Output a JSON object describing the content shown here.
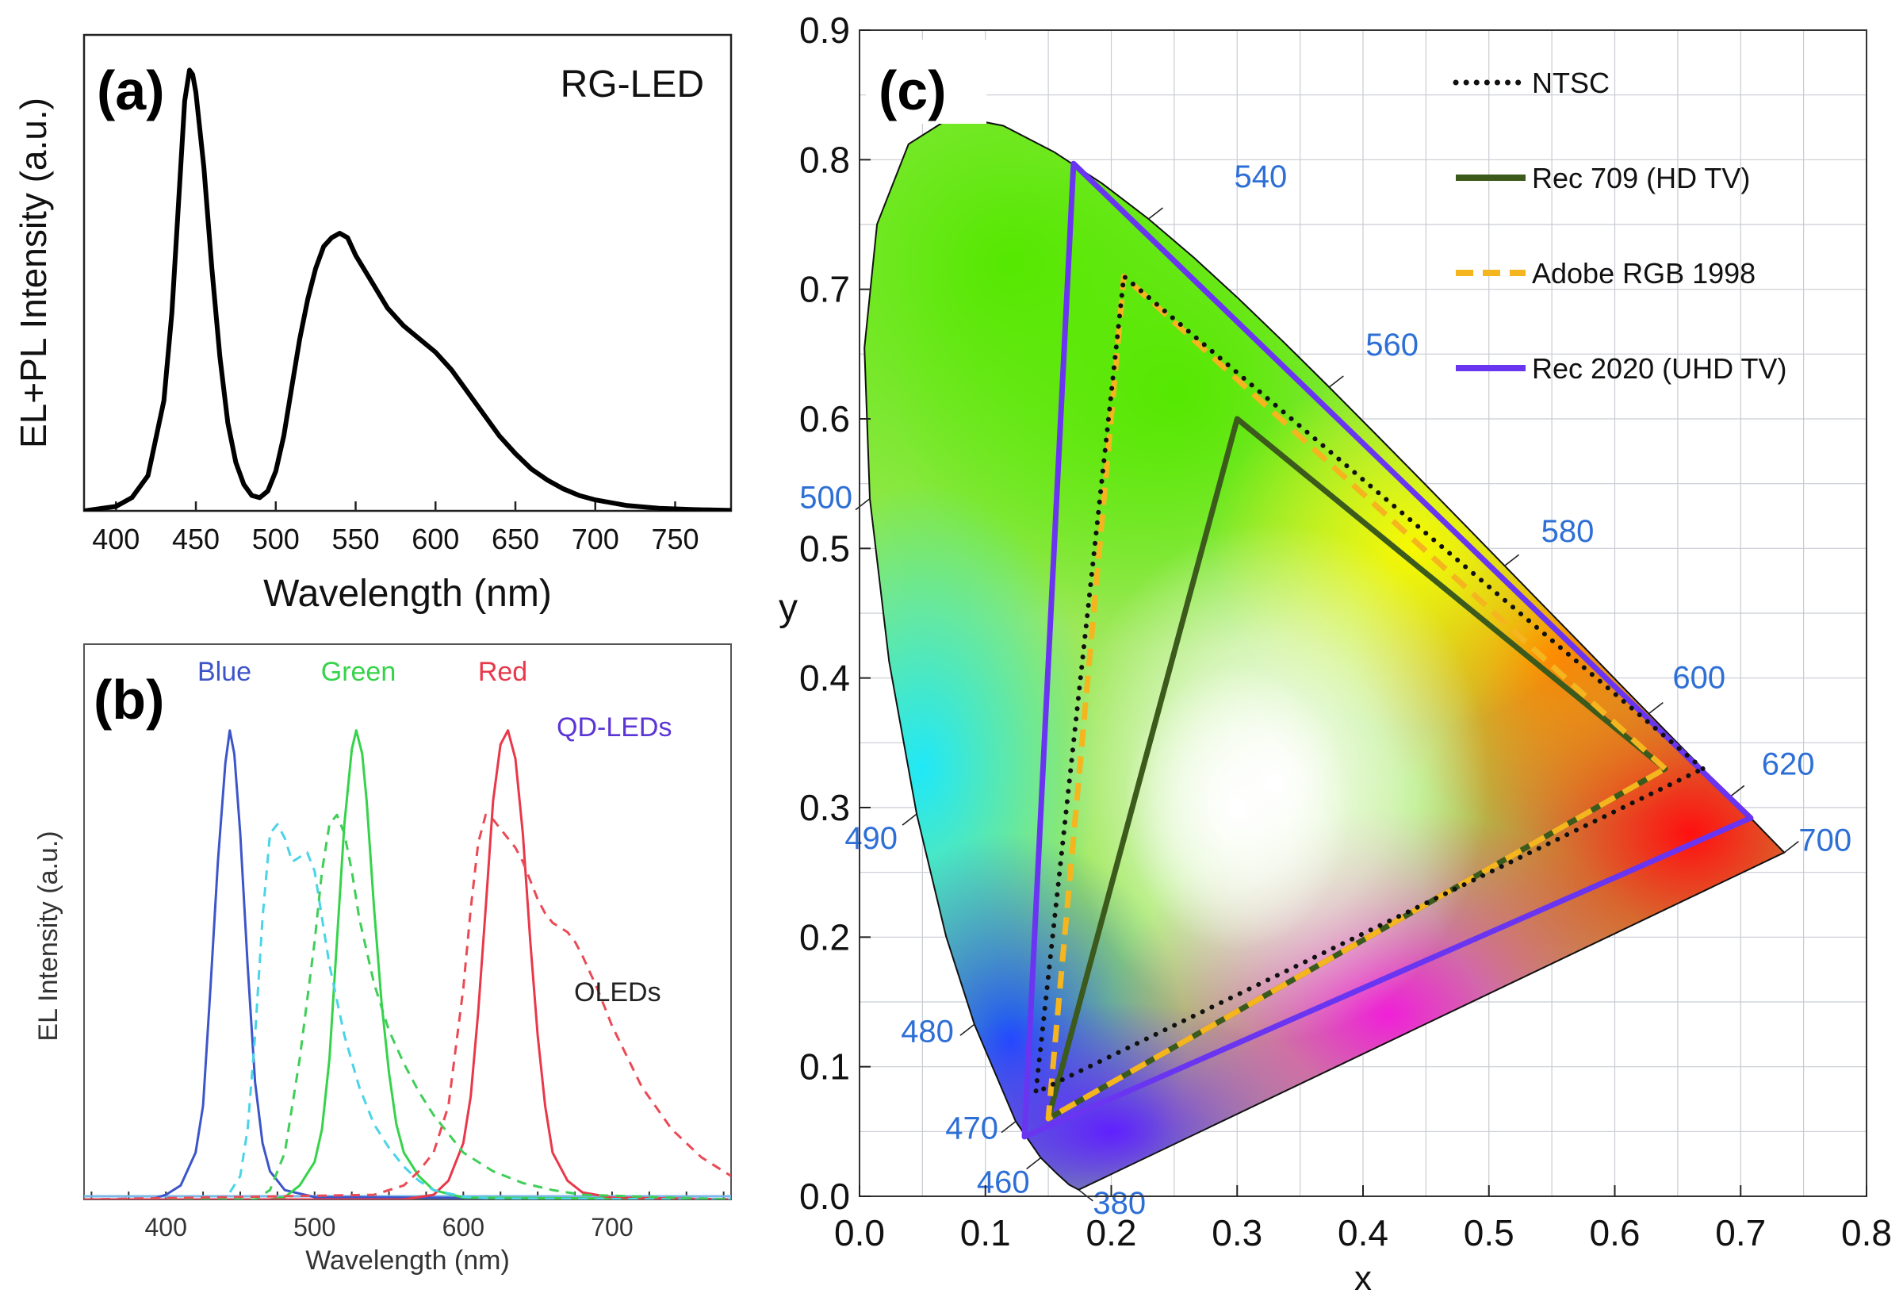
{
  "chart_data": [
    {
      "panel": "(a)",
      "type": "line",
      "annotation": "RG-LED",
      "xlabel": "Wavelength (nm)",
      "ylabel": "EL+PL Intensity (a.u.)",
      "xlim": [
        380,
        785
      ],
      "ylim": [
        0,
        1.08
      ],
      "xticks": [
        400,
        450,
        500,
        550,
        600,
        650,
        700,
        750
      ],
      "colors": {
        "line": "#000000"
      },
      "series": [
        {
          "x": [
            380,
            400,
            410,
            420,
            430,
            435,
            440,
            443,
            446,
            448,
            450,
            455,
            460,
            465,
            470,
            475,
            480,
            485,
            490,
            495,
            500,
            505,
            510,
            515,
            520,
            525,
            530,
            535,
            540,
            545,
            550,
            555,
            560,
            570,
            580,
            590,
            600,
            610,
            620,
            630,
            640,
            650,
            660,
            670,
            680,
            690,
            700,
            720,
            740,
            760,
            785
          ],
          "y": [
            0.0,
            0.01,
            0.03,
            0.08,
            0.25,
            0.45,
            0.75,
            0.93,
            1.0,
            0.99,
            0.95,
            0.78,
            0.55,
            0.35,
            0.2,
            0.11,
            0.06,
            0.035,
            0.03,
            0.045,
            0.09,
            0.17,
            0.28,
            0.39,
            0.48,
            0.55,
            0.6,
            0.62,
            0.63,
            0.62,
            0.58,
            0.55,
            0.52,
            0.46,
            0.42,
            0.39,
            0.36,
            0.32,
            0.27,
            0.22,
            0.17,
            0.13,
            0.095,
            0.07,
            0.05,
            0.035,
            0.025,
            0.012,
            0.006,
            0.003,
            0.001
          ]
        }
      ]
    },
    {
      "panel": "(b)",
      "type": "line",
      "annotations": {
        "qd": "QD-LEDs",
        "oled": "OLEDs"
      },
      "xlabel": "Wavelength (nm)",
      "ylabel": "EL Intensity (a.u.)",
      "xlim": [
        345,
        780
      ],
      "ylim": [
        0,
        1.03
      ],
      "xticks": [
        400,
        500,
        600,
        700
      ],
      "series": [
        {
          "name": "Blue",
          "style": "solid",
          "color": "#3d55c9",
          "x": [
            345,
            390,
            400,
            410,
            420,
            425,
            430,
            435,
            440,
            443,
            446,
            450,
            455,
            460,
            465,
            470,
            480,
            500,
            780
          ],
          "y": [
            0.0,
            0.0,
            0.01,
            0.03,
            0.1,
            0.2,
            0.45,
            0.72,
            0.93,
            1.0,
            0.95,
            0.78,
            0.5,
            0.25,
            0.12,
            0.06,
            0.02,
            0.005,
            0.0
          ]
        },
        {
          "name": "Green",
          "style": "solid",
          "color": "#35d34a",
          "x": [
            345,
            470,
            480,
            490,
            500,
            505,
            510,
            515,
            520,
            525,
            528,
            532,
            535,
            540,
            545,
            550,
            555,
            560,
            570,
            580,
            600,
            780
          ],
          "y": [
            0.0,
            0.0,
            0.005,
            0.03,
            0.08,
            0.15,
            0.3,
            0.55,
            0.8,
            0.96,
            1.0,
            0.95,
            0.85,
            0.62,
            0.42,
            0.27,
            0.16,
            0.1,
            0.05,
            0.02,
            0.004,
            0.0
          ]
        },
        {
          "name": "Red",
          "style": "solid",
          "color": "#e8384a",
          "x": [
            345,
            560,
            580,
            590,
            600,
            605,
            610,
            615,
            620,
            625,
            630,
            635,
            640,
            645,
            650,
            655,
            660,
            670,
            680,
            700,
            780
          ],
          "y": [
            0.0,
            0.0,
            0.01,
            0.04,
            0.12,
            0.22,
            0.4,
            0.62,
            0.85,
            0.97,
            1.0,
            0.94,
            0.78,
            0.55,
            0.35,
            0.2,
            0.1,
            0.04,
            0.015,
            0.004,
            0.0
          ]
        },
        {
          "style": "dashed",
          "color": "#4ad4e6",
          "x": [
            345,
            440,
            450,
            455,
            460,
            465,
            470,
            475,
            480,
            485,
            490,
            495,
            500,
            505,
            510,
            520,
            530,
            540,
            550,
            560,
            570,
            580,
            600,
            620,
            780
          ],
          "y": [
            0.0,
            0.0,
            0.05,
            0.15,
            0.35,
            0.6,
            0.78,
            0.8,
            0.77,
            0.72,
            0.73,
            0.74,
            0.7,
            0.6,
            0.5,
            0.35,
            0.24,
            0.16,
            0.11,
            0.07,
            0.04,
            0.02,
            0.006,
            0.002,
            0.0
          ]
        },
        {
          "style": "dashed",
          "color": "#3fce57",
          "x": [
            345,
            460,
            470,
            480,
            490,
            500,
            505,
            510,
            515,
            520,
            525,
            530,
            540,
            550,
            560,
            570,
            580,
            590,
            600,
            620,
            640,
            660,
            680,
            780
          ],
          "y": [
            0.0,
            0.0,
            0.02,
            0.1,
            0.3,
            0.55,
            0.7,
            0.8,
            0.82,
            0.78,
            0.7,
            0.6,
            0.46,
            0.36,
            0.29,
            0.23,
            0.18,
            0.14,
            0.1,
            0.06,
            0.035,
            0.02,
            0.01,
            0.0
          ]
        },
        {
          "style": "dashed",
          "color": "#ea4a55",
          "x": [
            345,
            540,
            560,
            570,
            580,
            590,
            600,
            605,
            610,
            615,
            620,
            625,
            630,
            635,
            640,
            645,
            650,
            655,
            660,
            665,
            670,
            675,
            680,
            690,
            700,
            720,
            740,
            760,
            780
          ],
          "y": [
            0.0,
            0.01,
            0.03,
            0.06,
            0.1,
            0.2,
            0.45,
            0.62,
            0.76,
            0.82,
            0.81,
            0.79,
            0.77,
            0.75,
            0.72,
            0.68,
            0.64,
            0.61,
            0.59,
            0.58,
            0.57,
            0.55,
            0.52,
            0.45,
            0.37,
            0.24,
            0.15,
            0.09,
            0.05
          ]
        }
      ]
    },
    {
      "panel": "(c)",
      "type": "scatter",
      "xlabel": "x",
      "ylabel": "y",
      "xlim": [
        0.0,
        0.8
      ],
      "ylim": [
        0.0,
        0.9
      ],
      "xticks": [
        0.0,
        0.1,
        0.2,
        0.3,
        0.4,
        0.5,
        0.6,
        0.7,
        0.8
      ],
      "yticks": [
        0.0,
        0.1,
        0.2,
        0.3,
        0.4,
        0.5,
        0.6,
        0.7,
        0.8,
        0.9
      ],
      "xtick_labels": [
        "0.0",
        "0.1",
        "0.2",
        "0.3",
        "0.4",
        "0.5",
        "0.6",
        "0.7",
        "0.8"
      ],
      "ytick_labels": [
        "0.0",
        "0.1",
        "0.2",
        "0.3",
        "0.4",
        "0.5",
        "0.6",
        "0.7",
        "0.8",
        "0.9"
      ],
      "grid": true,
      "legend_position": "top-right",
      "spectral_locus": {
        "x": [
          0.1741,
          0.1666,
          0.1566,
          0.144,
          0.1241,
          0.0913,
          0.0687,
          0.0454,
          0.0235,
          0.0082,
          0.0039,
          0.0139,
          0.0389,
          0.0743,
          0.1142,
          0.1547,
          0.1929,
          0.2296,
          0.2658,
          0.3016,
          0.3373,
          0.3731,
          0.4087,
          0.4441,
          0.4788,
          0.5125,
          0.5448,
          0.5752,
          0.6029,
          0.627,
          0.6482,
          0.6658,
          0.6801,
          0.6915,
          0.7006,
          0.7079,
          0.714,
          0.719,
          0.7347
        ],
        "y": [
          0.005,
          0.0089,
          0.0177,
          0.0297,
          0.0578,
          0.1327,
          0.2007,
          0.295,
          0.4127,
          0.5384,
          0.6548,
          0.7502,
          0.812,
          0.8338,
          0.8262,
          0.8059,
          0.7816,
          0.7543,
          0.7243,
          0.6923,
          0.6589,
          0.6245,
          0.5896,
          0.5547,
          0.5202,
          0.4866,
          0.4544,
          0.4242,
          0.3965,
          0.3725,
          0.3514,
          0.334,
          0.3197,
          0.3083,
          0.2993,
          0.292,
          0.2859,
          0.2809,
          0.2653
        ]
      },
      "wavelength_labels": [
        {
          "label": "380",
          "x": 0.1741,
          "y": 0.005
        },
        {
          "label": "460",
          "x": 0.144,
          "y": 0.0297
        },
        {
          "label": "470",
          "x": 0.1241,
          "y": 0.0578
        },
        {
          "label": "480",
          "x": 0.0913,
          "y": 0.1327
        },
        {
          "label": "490",
          "x": 0.0454,
          "y": 0.295
        },
        {
          "label": "500",
          "x": 0.0082,
          "y": 0.5384
        },
        {
          "label": "540",
          "x": 0.2296,
          "y": 0.7543
        },
        {
          "label": "560",
          "x": 0.3731,
          "y": 0.6245
        },
        {
          "label": "580",
          "x": 0.5125,
          "y": 0.4866
        },
        {
          "label": "600",
          "x": 0.627,
          "y": 0.3725
        },
        {
          "label": "620",
          "x": 0.6915,
          "y": 0.3083
        },
        {
          "label": "700",
          "x": 0.7347,
          "y": 0.2653
        }
      ],
      "gamuts": [
        {
          "name": "NTSC",
          "style": "dotted",
          "color": "#111111",
          "points": [
            [
              0.67,
              0.33
            ],
            [
              0.21,
              0.71
            ],
            [
              0.14,
              0.08
            ]
          ]
        },
        {
          "name": "Rec 709 (HD TV)",
          "style": "solid",
          "color": "#3b5a1c",
          "points": [
            [
              0.64,
              0.33
            ],
            [
              0.3,
              0.6
            ],
            [
              0.15,
              0.06
            ]
          ]
        },
        {
          "name": "Adobe RGB 1998",
          "style": "dashed",
          "color": "#f5b51f",
          "points": [
            [
              0.64,
              0.33
            ],
            [
              0.21,
              0.71
            ],
            [
              0.15,
              0.06
            ]
          ]
        },
        {
          "name": "Rec 2020 (UHD TV)",
          "style": "solid",
          "color": "#6a35f0",
          "points": [
            [
              0.708,
              0.292
            ],
            [
              0.17,
              0.797
            ],
            [
              0.131,
              0.046
            ]
          ]
        }
      ],
      "colors": {
        "wavelength_label": "#2e6fd6",
        "grid": "#c8ccd2"
      }
    }
  ]
}
